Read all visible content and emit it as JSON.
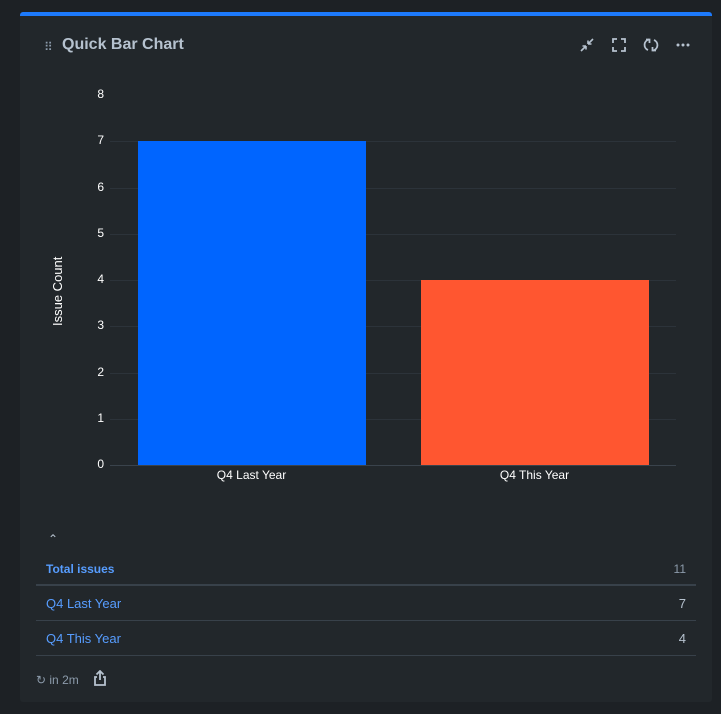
{
  "header": {
    "drag_glyph": "⠿",
    "title": "Quick Bar Chart",
    "actions": [
      {
        "name": "minimize-icon",
        "glyph": "⤡"
      },
      {
        "name": "fullscreen-icon",
        "glyph": "⛶"
      },
      {
        "name": "refresh-icon",
        "glyph": "↻"
      },
      {
        "name": "more-icon",
        "glyph": "···"
      }
    ]
  },
  "chart_data": {
    "type": "bar",
    "title": "",
    "xlabel": "",
    "ylabel": "Issue Count",
    "categories": [
      "Q4 Last Year",
      "Q4 This Year"
    ],
    "values": [
      7,
      4
    ],
    "colors": [
      "#0065ff",
      "#ff5630"
    ],
    "ylim": [
      0,
      8
    ],
    "yticks": [
      0,
      1,
      2,
      3,
      4,
      5,
      6,
      7,
      8
    ],
    "grid": true,
    "legend": "none"
  },
  "summary": {
    "toggle_glyph": "⌃",
    "total_label": "Total issues",
    "total_value": "11",
    "rows": [
      {
        "label": "Q4 Last Year",
        "value": "7"
      },
      {
        "label": "Q4 This Year",
        "value": "4"
      }
    ]
  },
  "footer": {
    "refresh_text": "↻ in 2m",
    "share_glyph": "⇪"
  }
}
